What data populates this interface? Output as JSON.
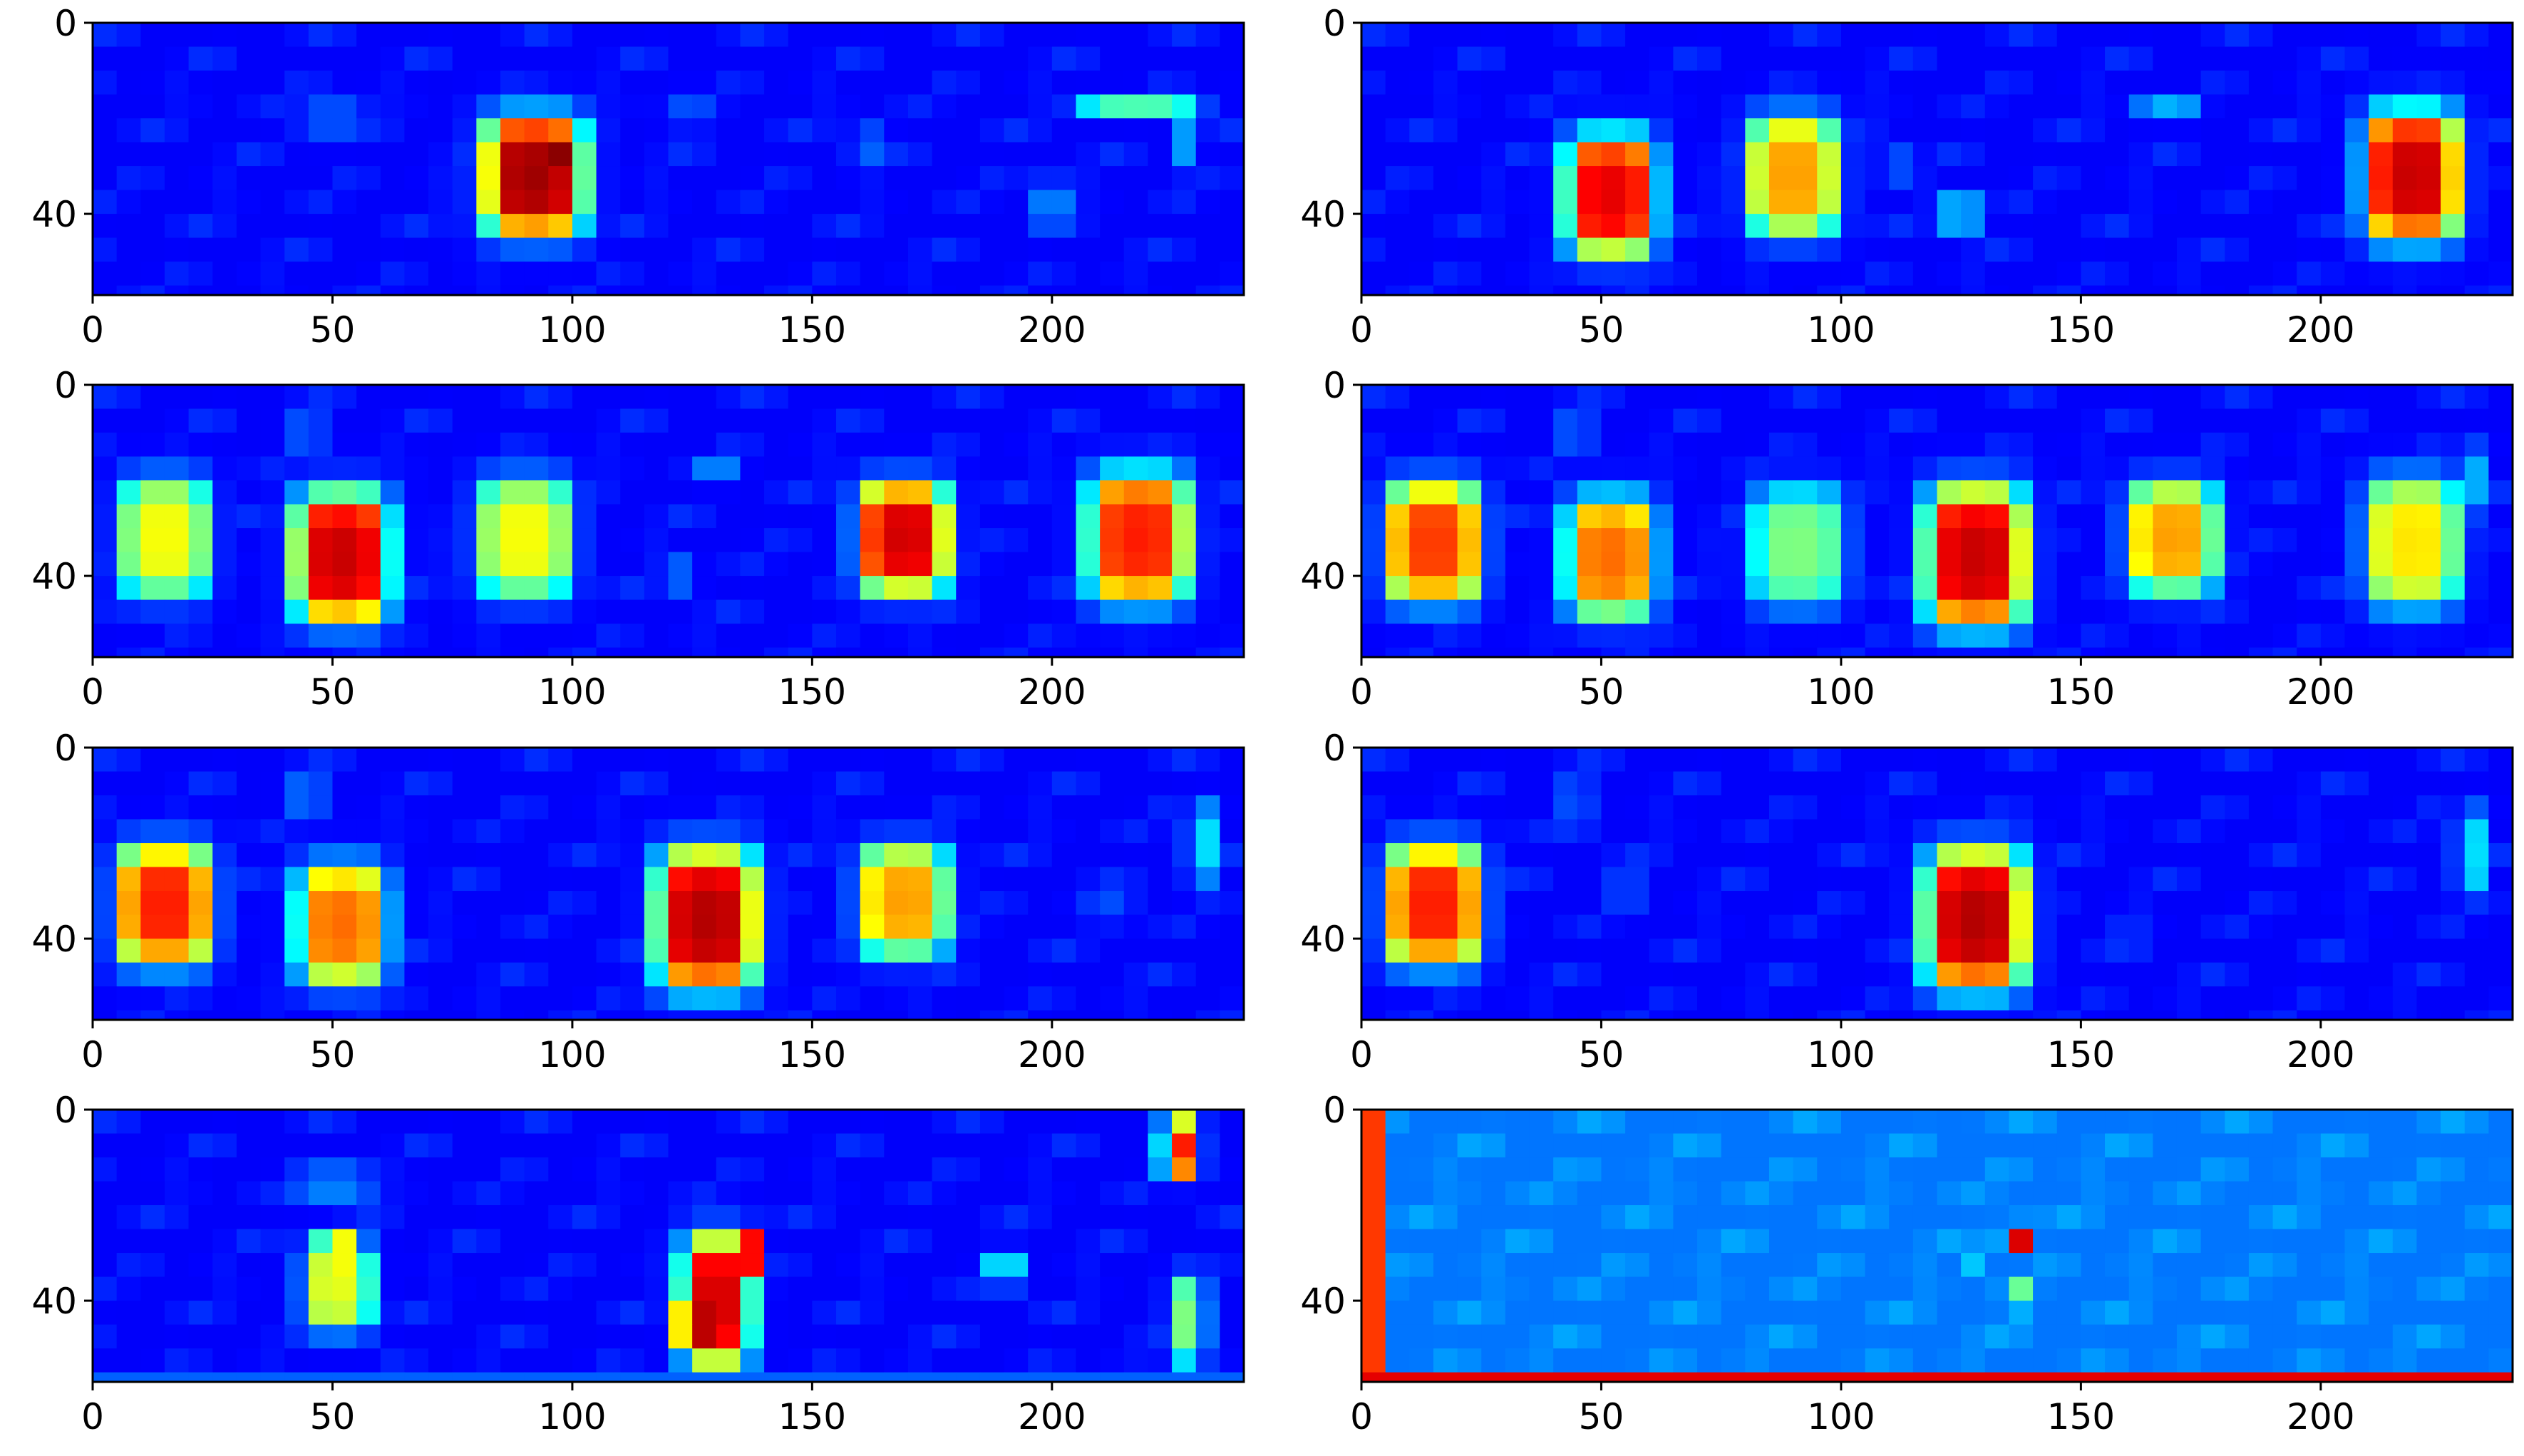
{
  "chart_data": [
    {
      "type": "heatmap",
      "panel": "row1-left",
      "xlim": [
        0,
        240
      ],
      "ylim": [
        57,
        0
      ],
      "xticks": [
        0,
        50,
        100,
        150,
        200
      ],
      "yticks": [
        0,
        40
      ],
      "grid": false,
      "colormap": "jet",
      "background": 0.12,
      "blobs": [
        {
          "x": 92,
          "y": 32,
          "w": 20,
          "h": 24,
          "peak": 0.97
        },
        {
          "x": 97,
          "y": 26,
          "w": 10,
          "h": 8,
          "peak": 1.0
        },
        {
          "x": 218,
          "y": 17,
          "w": 24,
          "h": 5,
          "peak": 0.45
        },
        {
          "x": 228,
          "y": 25,
          "w": 6,
          "h": 12,
          "peak": 0.28
        },
        {
          "x": 200,
          "y": 38,
          "w": 8,
          "h": 10,
          "peak": 0.25
        },
        {
          "x": 162,
          "y": 26,
          "w": 8,
          "h": 8,
          "peak": 0.22
        },
        {
          "x": 50,
          "y": 20,
          "w": 14,
          "h": 10,
          "peak": 0.2
        },
        {
          "x": 124,
          "y": 18,
          "w": 10,
          "h": 8,
          "peak": 0.2
        }
      ]
    },
    {
      "type": "heatmap",
      "panel": "row1-right",
      "xlim": [
        0,
        240
      ],
      "ylim": [
        57,
        0
      ],
      "xticks": [
        0,
        50,
        100,
        150,
        200
      ],
      "yticks": [
        0,
        40
      ],
      "grid": false,
      "colormap": "jet",
      "background": 0.12,
      "blobs": [
        {
          "x": 52,
          "y": 36,
          "w": 18,
          "h": 24,
          "peak": 0.9
        },
        {
          "x": 90,
          "y": 32,
          "w": 18,
          "h": 24,
          "peak": 0.72
        },
        {
          "x": 219,
          "y": 32,
          "w": 19,
          "h": 26,
          "peak": 0.93
        },
        {
          "x": 168,
          "y": 18,
          "w": 12,
          "h": 6,
          "peak": 0.3
        },
        {
          "x": 124,
          "y": 40,
          "w": 10,
          "h": 8,
          "peak": 0.3
        },
        {
          "x": 112,
          "y": 30,
          "w": 8,
          "h": 8,
          "peak": 0.2
        }
      ]
    },
    {
      "type": "heatmap",
      "panel": "row2-left",
      "xlim": [
        0,
        240
      ],
      "ylim": [
        57,
        0
      ],
      "xticks": [
        0,
        50,
        100,
        150,
        200
      ],
      "yticks": [
        0,
        40
      ],
      "grid": false,
      "colormap": "jet",
      "background": 0.12,
      "blobs": [
        {
          "x": 15,
          "y": 32,
          "w": 18,
          "h": 24,
          "peak": 0.62
        },
        {
          "x": 52,
          "y": 36,
          "w": 19,
          "h": 26,
          "peak": 0.93
        },
        {
          "x": 90,
          "y": 32,
          "w": 19,
          "h": 24,
          "peak": 0.62
        },
        {
          "x": 169,
          "y": 32,
          "w": 18,
          "h": 22,
          "peak": 0.92
        },
        {
          "x": 218,
          "y": 32,
          "w": 20,
          "h": 26,
          "peak": 0.85
        },
        {
          "x": 130,
          "y": 18,
          "w": 10,
          "h": 6,
          "peak": 0.25
        },
        {
          "x": 122,
          "y": 40,
          "w": 8,
          "h": 8,
          "peak": 0.22
        },
        {
          "x": 44,
          "y": 10,
          "w": 8,
          "h": 12,
          "peak": 0.2
        }
      ]
    },
    {
      "type": "heatmap",
      "panel": "row2-right",
      "xlim": [
        0,
        240
      ],
      "ylim": [
        57,
        0
      ],
      "xticks": [
        0,
        50,
        100,
        150,
        200
      ],
      "yticks": [
        0,
        40
      ],
      "grid": false,
      "colormap": "jet",
      "background": 0.12,
      "blobs": [
        {
          "x": 15,
          "y": 33,
          "w": 19,
          "h": 24,
          "peak": 0.82
        },
        {
          "x": 52,
          "y": 36,
          "w": 18,
          "h": 24,
          "peak": 0.77
        },
        {
          "x": 91,
          "y": 34,
          "w": 19,
          "h": 24,
          "peak": 0.5
        },
        {
          "x": 128,
          "y": 36,
          "w": 20,
          "h": 28,
          "peak": 0.93
        },
        {
          "x": 169,
          "y": 32,
          "w": 18,
          "h": 22,
          "peak": 0.72
        },
        {
          "x": 219,
          "y": 33,
          "w": 19,
          "h": 26,
          "peak": 0.65
        },
        {
          "x": 231,
          "y": 20,
          "w": 6,
          "h": 14,
          "peak": 0.3
        },
        {
          "x": 44,
          "y": 10,
          "w": 8,
          "h": 12,
          "peak": 0.2
        }
      ]
    },
    {
      "type": "heatmap",
      "panel": "row3-left",
      "xlim": [
        0,
        240
      ],
      "ylim": [
        57,
        0
      ],
      "xticks": [
        0,
        50,
        100,
        150,
        200
      ],
      "yticks": [
        0,
        40
      ],
      "grid": false,
      "colormap": "jet",
      "background": 0.12,
      "blobs": [
        {
          "x": 15,
          "y": 33,
          "w": 19,
          "h": 24,
          "peak": 0.85
        },
        {
          "x": 52,
          "y": 37,
          "w": 18,
          "h": 24,
          "peak": 0.77
        },
        {
          "x": 128,
          "y": 36,
          "w": 20,
          "h": 28,
          "peak": 0.95
        },
        {
          "x": 169,
          "y": 32,
          "w": 18,
          "h": 22,
          "peak": 0.72
        },
        {
          "x": 231,
          "y": 20,
          "w": 6,
          "h": 16,
          "peak": 0.35
        },
        {
          "x": 44,
          "y": 10,
          "w": 8,
          "h": 12,
          "peak": 0.22
        },
        {
          "x": 212,
          "y": 33,
          "w": 10,
          "h": 8,
          "peak": 0.2
        }
      ]
    },
    {
      "type": "heatmap",
      "panel": "row3-right",
      "xlim": [
        0,
        240
      ],
      "ylim": [
        57,
        0
      ],
      "xticks": [
        0,
        50,
        100,
        150,
        200
      ],
      "yticks": [
        0,
        40
      ],
      "grid": false,
      "colormap": "jet",
      "background": 0.12,
      "blobs": [
        {
          "x": 15,
          "y": 33,
          "w": 19,
          "h": 24,
          "peak": 0.85
        },
        {
          "x": 128,
          "y": 36,
          "w": 20,
          "h": 28,
          "peak": 0.95
        },
        {
          "x": 231,
          "y": 22,
          "w": 6,
          "h": 18,
          "peak": 0.35
        },
        {
          "x": 44,
          "y": 12,
          "w": 8,
          "h": 12,
          "peak": 0.2
        },
        {
          "x": 55,
          "y": 30,
          "w": 8,
          "h": 10,
          "peak": 0.18
        },
        {
          "x": 160,
          "y": 40,
          "w": 8,
          "h": 10,
          "peak": 0.16
        }
      ]
    },
    {
      "type": "heatmap",
      "panel": "row4-left",
      "xlim": [
        0,
        240
      ],
      "ylim": [
        57,
        0
      ],
      "xticks": [
        0,
        50,
        100,
        150,
        200
      ],
      "yticks": [
        0,
        40
      ],
      "grid": false,
      "colormap": "jet",
      "background": 0.12,
      "bottom_band": {
        "y": 55,
        "level": 0.22
      },
      "blobs": [
        {
          "x": 51,
          "y": 37,
          "w": 14,
          "h": 18,
          "peak": 0.6
        },
        {
          "x": 51,
          "y": 30,
          "w": 8,
          "h": 6,
          "peak": 0.78
        },
        {
          "x": 130,
          "y": 40,
          "w": 14,
          "h": 26,
          "peak": 0.92
        },
        {
          "x": 127,
          "y": 45,
          "w": 10,
          "h": 8,
          "peak": 1.0
        },
        {
          "x": 136,
          "y": 30,
          "w": 6,
          "h": 8,
          "peak": 0.95
        },
        {
          "x": 227,
          "y": 8,
          "w": 8,
          "h": 12,
          "peak": 0.85
        },
        {
          "x": 228,
          "y": 44,
          "w": 8,
          "h": 18,
          "peak": 0.5
        },
        {
          "x": 190,
          "y": 33,
          "w": 6,
          "h": 8,
          "peak": 0.4
        },
        {
          "x": 50,
          "y": 16,
          "w": 16,
          "h": 8,
          "peak": 0.25
        }
      ]
    },
    {
      "type": "heatmap",
      "panel": "row4-right",
      "xlim": [
        0,
        240
      ],
      "ylim": [
        57,
        0
      ],
      "xticks": [
        0,
        50,
        100,
        150,
        200
      ],
      "yticks": [
        0,
        40
      ],
      "grid": false,
      "colormap": "jet",
      "background": 0.24,
      "left_band": {
        "x": 2,
        "level": 0.82
      },
      "bottom_band": {
        "y": 55,
        "level": 0.9
      },
      "blobs": [
        {
          "x": 136,
          "y": 27,
          "w": 5,
          "h": 6,
          "peak": 0.95
        },
        {
          "x": 136,
          "y": 39,
          "w": 5,
          "h": 6,
          "peak": 0.5
        },
        {
          "x": 126,
          "y": 32,
          "w": 3,
          "h": 4,
          "peak": 0.4
        },
        {
          "x": 136,
          "y": 1,
          "w": 12,
          "h": 2,
          "peak": 0.45
        }
      ]
    }
  ]
}
